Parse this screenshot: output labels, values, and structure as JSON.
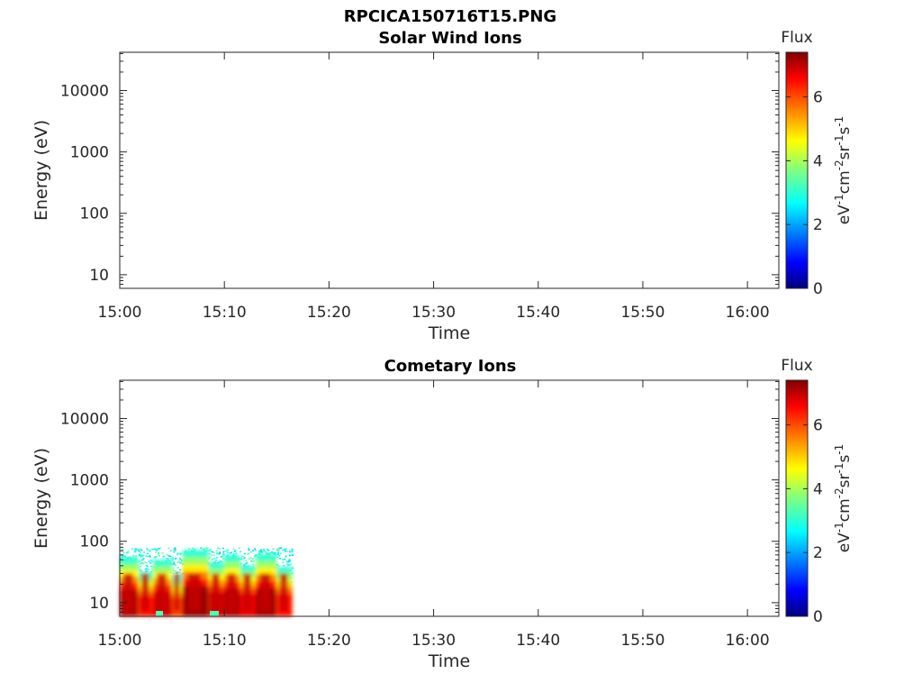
{
  "figure": {
    "title": "RPCICA150716T15.PNG"
  },
  "chart_data": [
    {
      "type": "heatmap",
      "title": "Solar Wind Ions",
      "xlabel": "Time",
      "ylabel": "Energy (eV)",
      "x_range": [
        "15:00",
        "16:03"
      ],
      "y_scale": "log",
      "y_range": [
        6,
        42000
      ],
      "x_ticks": [
        "15:00",
        "15:10",
        "15:20",
        "15:30",
        "15:40",
        "15:50",
        "16:00"
      ],
      "y_ticks": [
        "10",
        "100",
        "1000",
        "10000"
      ],
      "colorbar": {
        "title": "Flux",
        "unit": "eV-1cm-2sr-1s-1",
        "range": [
          0,
          7.4
        ],
        "ticks": [
          "0",
          "2",
          "4",
          "6"
        ],
        "colormap": "jet"
      },
      "data_present": false,
      "grid": false
    },
    {
      "type": "heatmap",
      "title": "Cometary Ions",
      "xlabel": "Time",
      "ylabel": "Energy (eV)",
      "x_range": [
        "15:00",
        "16:03"
      ],
      "y_scale": "log",
      "y_range": [
        6,
        42000
      ],
      "x_ticks": [
        "15:00",
        "15:10",
        "15:20",
        "15:30",
        "15:40",
        "15:50",
        "16:00"
      ],
      "y_ticks": [
        "10",
        "100",
        "1000",
        "10000"
      ],
      "colorbar": {
        "title": "Flux",
        "unit": "eV-1cm-2sr-1s-1",
        "range": [
          0,
          7.4
        ],
        "ticks": [
          "0",
          "2",
          "4",
          "6"
        ],
        "colormap": "jet"
      },
      "data_present": true,
      "data_extent": {
        "time_start": "15:00",
        "time_end": "15:16.5",
        "energy_min": 6,
        "energy_max": 80
      },
      "bands": [
        {
          "t_start": 0.0,
          "t_end": 1.8,
          "e_top": 55,
          "flux": 7.0
        },
        {
          "t_start": 1.8,
          "t_end": 3.2,
          "e_top": 32,
          "flux": 6.4
        },
        {
          "t_start": 3.2,
          "t_end": 5.0,
          "e_top": 50,
          "flux": 6.8
        },
        {
          "t_start": 5.0,
          "t_end": 6.0,
          "e_top": 28,
          "flux": 6.0
        },
        {
          "t_start": 6.0,
          "t_end": 8.5,
          "e_top": 72,
          "flux": 7.2
        },
        {
          "t_start": 8.5,
          "t_end": 10.0,
          "e_top": 45,
          "flux": 6.8
        },
        {
          "t_start": 10.0,
          "t_end": 11.5,
          "e_top": 60,
          "flux": 7.0
        },
        {
          "t_start": 11.5,
          "t_end": 13.0,
          "e_top": 40,
          "flux": 6.6
        },
        {
          "t_start": 13.0,
          "t_end": 15.0,
          "e_top": 62,
          "flux": 7.1
        },
        {
          "t_start": 15.0,
          "t_end": 16.5,
          "e_top": 38,
          "flux": 6.4
        }
      ],
      "grid": false
    }
  ]
}
